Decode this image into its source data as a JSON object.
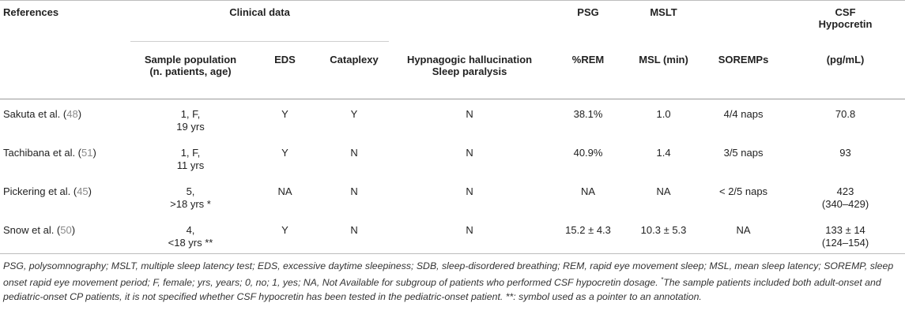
{
  "headers": {
    "references": "References",
    "clinical_data": "Clinical data",
    "psg": "PSG",
    "mslt": "MSLT",
    "csf_line1": "CSF",
    "csf_line2": "Hypocretin",
    "sub": {
      "sample_line1": "Sample population",
      "sample_line2": "(n. patients, age)",
      "eds": "EDS",
      "cataplexy": "Cataplexy",
      "hh_line1": "Hypnagogic hallucination",
      "hh_line2": "Sleep paralysis",
      "rem": "%REM",
      "msl": "MSL (min)",
      "soremps": "SOREMPs",
      "csf_unit": "(pg/mL)"
    }
  },
  "rows": [
    {
      "ref_name": "Sakuta et al. (",
      "ref_num": "48",
      "ref_close": ")",
      "sample_line1": "1, F,",
      "sample_line2": "19 yrs",
      "eds": "Y",
      "cataplexy": "Y",
      "hh": "N",
      "rem": "38.1%",
      "msl": "1.0",
      "soremps": "4/4 naps",
      "csf_line1": "70.8",
      "csf_line2": ""
    },
    {
      "ref_name": "Tachibana et al. (",
      "ref_num": "51",
      "ref_close": ")",
      "sample_line1": "1, F,",
      "sample_line2": "11 yrs",
      "eds": "Y",
      "cataplexy": "N",
      "hh": "N",
      "rem": "40.9%",
      "msl": "1.4",
      "soremps": "3/5 naps",
      "csf_line1": "93",
      "csf_line2": ""
    },
    {
      "ref_name": "Pickering et al. (",
      "ref_num": "45",
      "ref_close": ")",
      "sample_line1": "5,",
      "sample_line2": ">18 yrs *",
      "eds": "NA",
      "cataplexy": "N",
      "hh": "N",
      "rem": "NA",
      "msl": "NA",
      "soremps": "< 2/5 naps",
      "csf_line1": "423",
      "csf_line2": "(340–429)"
    },
    {
      "ref_name": "Snow et al. (",
      "ref_num": "50",
      "ref_close": ")",
      "sample_line1": "4,",
      "sample_line2": "<18 yrs **",
      "eds": "Y",
      "cataplexy": "N",
      "hh": "N",
      "rem": "15.2 ± 4.3",
      "msl": "10.3 ± 5.3",
      "soremps": "NA",
      "csf_line1": "133 ± 14",
      "csf_line2": "(124–154)"
    }
  ],
  "footnote": {
    "part1": "PSG, polysomnography; MSLT, multiple sleep latency test; EDS, excessive daytime sleepiness; SDB, sleep-disordered breathing; REM, rapid eye movement sleep; MSL, mean sleep latency; SOREMP, sleep onset rapid eye movement period; F, female; yrs, years; 0, no; 1, yes; NA, Not Available for subgroup of patients who performed CSF hypocretin dosage. ",
    "star": "*",
    "part2": "The sample patients included both adult-onset and pediatric-onset CP patients, it is not specified whether CSF hypocretin has been tested in the pediatric-onset patient. **: symbol used as a pointer to an annotation."
  }
}
